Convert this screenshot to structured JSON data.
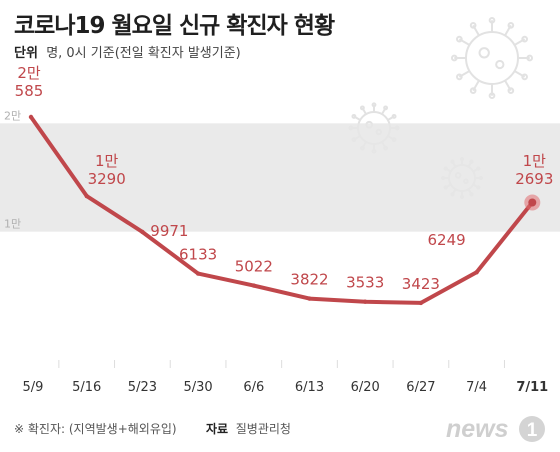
{
  "header": {
    "title": "코로나19 월요일 신규 확진자 현황",
    "unit_label": "단위",
    "unit_text": "명, 0시 기준(전일 확진자 발생기준)"
  },
  "footer": {
    "note": "※ 확진자: (지역발생+해외유입)",
    "source_label": "자료",
    "source_text": "질병관리청"
  },
  "logo": {
    "brand": "news",
    "mark": "1"
  },
  "colors": {
    "line": "#c0474b",
    "band": "#e6e6e6",
    "axis_label": "#333333",
    "highlight": "#e06b70"
  },
  "chart_data": {
    "type": "line",
    "categories": [
      "5/9",
      "5/16",
      "5/23",
      "5/30",
      "6/6",
      "6/13",
      "6/20",
      "6/27",
      "7/4",
      "7/11"
    ],
    "values": [
      20585,
      13290,
      9971,
      6133,
      5022,
      3822,
      3533,
      3423,
      6249,
      12693
    ],
    "point_labels": [
      [
        "2만",
        "585"
      ],
      [
        "1만",
        "3290"
      ],
      [
        "9971"
      ],
      [
        "6133"
      ],
      [
        "5022"
      ],
      [
        "3822"
      ],
      [
        "3533"
      ],
      [
        "3423"
      ],
      [
        "6249"
      ],
      [
        "1만",
        "2693"
      ]
    ],
    "y_ticks": [
      {
        "value": 20000,
        "label": "2만"
      },
      {
        "value": 10000,
        "label": "1만"
      }
    ],
    "ylim": [
      0,
      24000
    ],
    "highlight_last": true,
    "grid": false
  }
}
